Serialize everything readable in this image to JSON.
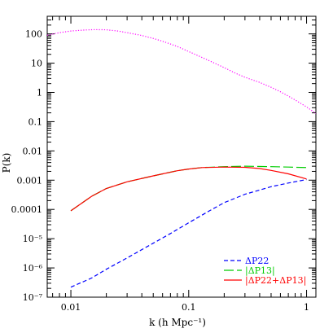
{
  "chart_data": {
    "type": "line",
    "title": "",
    "xlabel": "k (h Mpc⁻¹)",
    "ylabel": "P(k)",
    "x_scale": "log",
    "y_scale": "log",
    "xlim": [
      0.0063,
      1.2
    ],
    "ylim": [
      1e-07,
      400
    ],
    "grid": false,
    "legend_position": "bottom-right",
    "x_ticks": [
      {
        "value": 0.01,
        "label": "0.01"
      },
      {
        "value": 0.1,
        "label": "0.1"
      },
      {
        "value": 1,
        "label": "1"
      }
    ],
    "y_ticks": [
      {
        "value": 100,
        "label": "100"
      },
      {
        "value": 10,
        "label": "10"
      },
      {
        "value": 1,
        "label": "1"
      },
      {
        "value": 0.1,
        "label": "0.1"
      },
      {
        "value": 0.01,
        "label": "0.01"
      },
      {
        "value": 0.001,
        "label": "0.001"
      },
      {
        "value": 0.0001,
        "label": "0.0001"
      },
      {
        "value": 1e-05,
        "label": "10⁻⁵"
      },
      {
        "value": 1e-06,
        "label": "10⁻⁶"
      },
      {
        "value": 1e-07,
        "label": "10⁻⁷"
      }
    ],
    "series": [
      {
        "key": "linear",
        "color": "#ff00ff",
        "dash": "dotted",
        "x": [
          0.0063,
          0.008,
          0.01,
          0.013,
          0.016,
          0.02,
          0.025,
          0.03,
          0.04,
          0.05,
          0.06,
          0.07,
          0.08,
          0.1,
          0.12,
          0.15,
          0.2,
          0.25,
          0.3,
          0.4,
          0.5,
          0.6,
          0.7,
          0.8,
          1.0,
          1.2
        ],
        "values": [
          90,
          110,
          125,
          135,
          140,
          138,
          125,
          110,
          88,
          70,
          56,
          45,
          37,
          25,
          18,
          12,
          7,
          4.5,
          3.3,
          2.2,
          1.5,
          1.05,
          0.75,
          0.55,
          0.32,
          0.19
        ]
      },
      {
        "key": "dp22",
        "name": "ΔP22",
        "color": "#0000ff",
        "dash": "dashed",
        "x": [
          0.01,
          0.015,
          0.02,
          0.03,
          0.05,
          0.07,
          0.1,
          0.15,
          0.2,
          0.3,
          0.5,
          0.7,
          1.0
        ],
        "values": [
          2.2e-07,
          4.5e-07,
          9e-07,
          2.2e-06,
          7e-06,
          1.5e-05,
          3.5e-05,
          9e-05,
          0.00017,
          0.00033,
          0.0006,
          0.0008,
          0.00105
        ]
      },
      {
        "key": "dp13",
        "name": "|ΔP13|",
        "color": "#00cc00",
        "dash": "longdash",
        "x": [
          0.01,
          0.015,
          0.02,
          0.03,
          0.05,
          0.08,
          0.1,
          0.13,
          0.2,
          0.3,
          0.5,
          0.7,
          1.0
        ],
        "values": [
          9e-05,
          0.00028,
          0.00052,
          0.00088,
          0.0014,
          0.0021,
          0.0024,
          0.0027,
          0.0029,
          0.003,
          0.0029,
          0.0028,
          0.0027
        ]
      },
      {
        "key": "sum",
        "name": "|ΔP22+ΔP13|",
        "color": "#ff0000",
        "dash": "solid",
        "x": [
          0.01,
          0.015,
          0.02,
          0.03,
          0.05,
          0.08,
          0.1,
          0.13,
          0.2,
          0.3,
          0.4,
          0.5,
          0.7,
          1.0
        ],
        "values": [
          9e-05,
          0.00028,
          0.00052,
          0.00088,
          0.0014,
          0.0021,
          0.0024,
          0.0027,
          0.0028,
          0.00275,
          0.0025,
          0.00215,
          0.00165,
          0.0011
        ]
      }
    ]
  }
}
